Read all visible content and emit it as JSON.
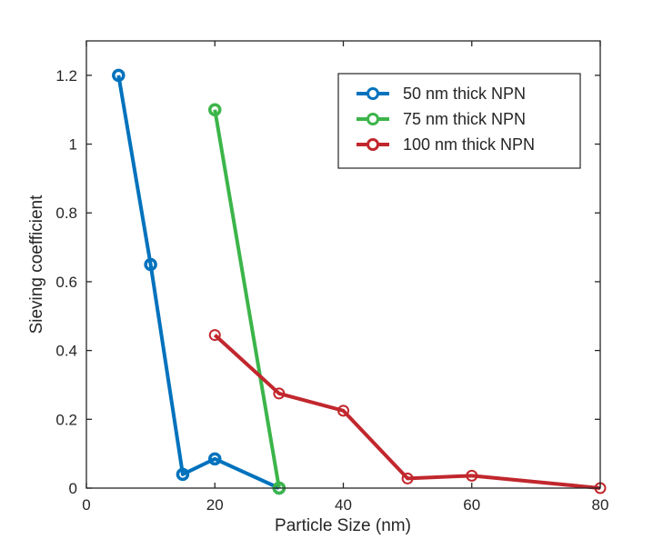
{
  "chart_data": {
    "type": "line",
    "title": "",
    "xlabel": "Particle Size (nm)",
    "ylabel": "Sieving coefficient",
    "xlim": [
      0,
      80
    ],
    "ylim": [
      0,
      1.3
    ],
    "xticks": [
      0,
      20,
      40,
      60,
      80
    ],
    "xtick_labels": [
      "0",
      "20",
      "40",
      "60",
      "80"
    ],
    "yticks": [
      0,
      0.2,
      0.4,
      0.6,
      0.8,
      1,
      1.2
    ],
    "ytick_labels": [
      "0",
      "0.2",
      "0.4",
      "0.6",
      "0.8",
      "1",
      "1.2"
    ],
    "grid": false,
    "legend_position": "top-right",
    "series": [
      {
        "name": "50 nm thick NPN",
        "color": "#0072BD",
        "x": [
          5,
          10,
          15,
          20,
          30
        ],
        "y": [
          1.2,
          0.65,
          0.04,
          0.085,
          0.0
        ]
      },
      {
        "name": "75 nm thick NPN",
        "color": "#3CB54A",
        "x": [
          20,
          30
        ],
        "y": [
          1.1,
          0.0
        ]
      },
      {
        "name": "100 nm thick NPN",
        "color": "#C1272D",
        "x": [
          20,
          30,
          40,
          50,
          60,
          80
        ],
        "y": [
          0.445,
          0.275,
          0.225,
          0.028,
          0.036,
          0.0
        ]
      }
    ]
  }
}
